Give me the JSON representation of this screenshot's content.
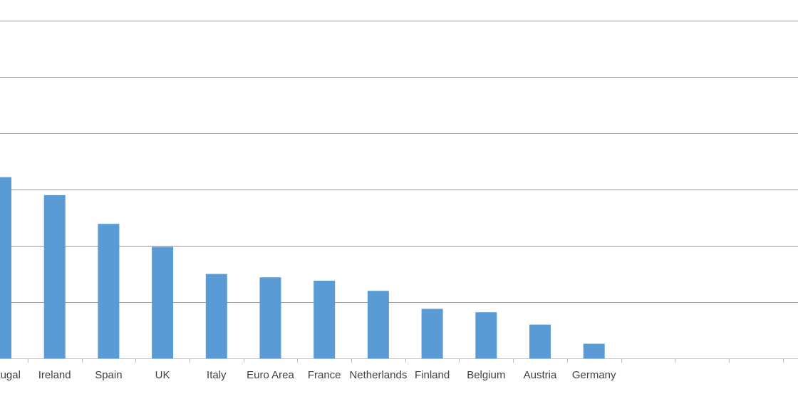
{
  "chart_data": {
    "type": "bar",
    "categories": [
      "Portugal",
      "Ireland",
      "Spain",
      "UK",
      "Italy",
      "Euro Area",
      "France",
      "Netherlands",
      "Finland",
      "Belgium",
      "Austria",
      "Germany",
      "",
      "",
      "",
      ""
    ],
    "values": [
      32.2,
      29.0,
      23.9,
      19.8,
      15.0,
      14.4,
      13.8,
      12.0,
      8.8,
      8.2,
      6.0,
      2.6,
      null,
      null,
      null,
      null
    ],
    "ylim": [
      0,
      60
    ],
    "title": "",
    "xlabel": "",
    "ylabel": "",
    "grid": true,
    "bar_color": "#5b9bd5"
  }
}
